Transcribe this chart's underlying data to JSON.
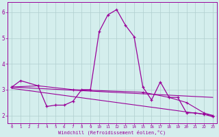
{
  "x": [
    0,
    1,
    2,
    3,
    4,
    5,
    6,
    7,
    8,
    9,
    10,
    11,
    12,
    13,
    14,
    15,
    16,
    17,
    18,
    19,
    20,
    21,
    22,
    23
  ],
  "line1": [
    3.1,
    3.35,
    null,
    3.15,
    2.35,
    2.4,
    2.4,
    2.55,
    3.0,
    3.0,
    5.25,
    5.9,
    6.1,
    5.5,
    5.05,
    3.1,
    2.6,
    3.3,
    2.7,
    2.7,
    2.1,
    2.1,
    2.05,
    1.95
  ],
  "line2_x": [
    0,
    3,
    7,
    15,
    18,
    20,
    22,
    23
  ],
  "line2_y": [
    3.1,
    3.15,
    3.0,
    2.9,
    2.7,
    2.5,
    2.1,
    2.0
  ],
  "line3_x": [
    0,
    23
  ],
  "line3_y": [
    3.1,
    2.7
  ],
  "line4_x": [
    0,
    23
  ],
  "line4_y": [
    3.05,
    2.0
  ],
  "line_color": "#990099",
  "bg_color": "#d4eeed",
  "grid_color": "#b0cece",
  "xlabel": "Windchill (Refroidissement éolien,°C)",
  "ylabel_ticks": [
    2,
    3,
    4,
    5,
    6
  ],
  "ylim": [
    1.7,
    6.4
  ],
  "xlim": [
    -0.5,
    23.5
  ]
}
